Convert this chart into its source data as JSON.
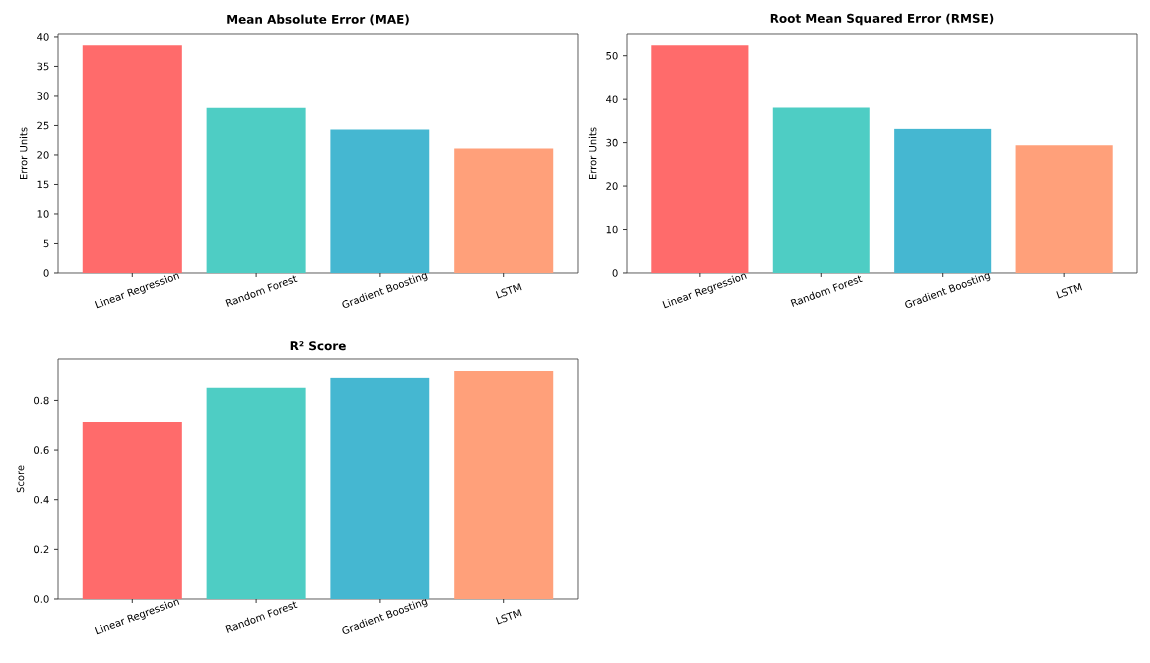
{
  "chart_data": [
    {
      "type": "bar",
      "title": "Mean Absolute Error (MAE)",
      "ylabel": "Error Units",
      "categories": [
        "Linear Regression",
        "Random Forest",
        "Gradient Boosting",
        "LSTM"
      ],
      "values": [
        38.6,
        28.0,
        24.3,
        21.1
      ],
      "colors": [
        "#ff6b6b",
        "#4ecdc4",
        "#45b7d1",
        "#ffa07a"
      ],
      "ylim": [
        0,
        40.5
      ],
      "yticks": [
        0,
        5,
        10,
        15,
        20,
        25,
        30,
        35,
        40
      ]
    },
    {
      "type": "bar",
      "title": "Root Mean Squared Error (RMSE)",
      "ylabel": "Error Units",
      "categories": [
        "Linear Regression",
        "Random Forest",
        "Gradient Boosting",
        "LSTM"
      ],
      "values": [
        52.4,
        38.1,
        33.2,
        29.4
      ],
      "colors": [
        "#ff6b6b",
        "#4ecdc4",
        "#45b7d1",
        "#ffa07a"
      ],
      "ylim": [
        0,
        55
      ],
      "yticks": [
        0,
        10,
        20,
        30,
        40,
        50
      ]
    },
    {
      "type": "bar",
      "title": "R² Score",
      "ylabel": "Score",
      "categories": [
        "Linear Regression",
        "Random Forest",
        "Gradient Boosting",
        "LSTM"
      ],
      "values": [
        0.713,
        0.851,
        0.891,
        0.919
      ],
      "colors": [
        "#ff6b6b",
        "#4ecdc4",
        "#45b7d1",
        "#ffa07a"
      ],
      "ylim": [
        0,
        0.967
      ],
      "yticks": [
        {
          "value": 0,
          "label": "0.0"
        },
        0.2,
        0.4,
        0.6,
        0.8
      ]
    }
  ]
}
